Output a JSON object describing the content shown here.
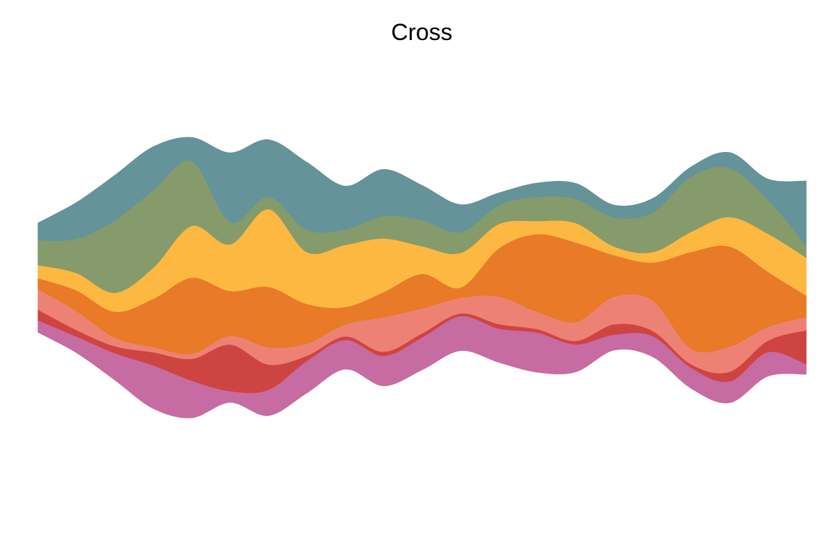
{
  "chart_data": {
    "type": "area",
    "layout": "streamgraph",
    "title": "Cross",
    "x": [
      0,
      1,
      2,
      3,
      4,
      5,
      6,
      7,
      8,
      9,
      10,
      11,
      12,
      13,
      14,
      15,
      16,
      17,
      18,
      19,
      20
    ],
    "axes_visible": false,
    "grid": false,
    "legend": "none",
    "layers_bottom_to_top": [
      {
        "color": "#C76BA3",
        "values": [
          0.35,
          0.47,
          0.78,
          1.25,
          1.08,
          0.33,
          0.75,
          0.93,
          0.85,
          0.87,
          0.94,
          1.0,
          0.98,
          1.15,
          0.8,
          0.45,
          0.6,
          0.6,
          0.62,
          0.7,
          0.3
        ]
      },
      {
        "color": "#CE4441",
        "values": [
          0.31,
          0.19,
          0.2,
          0.38,
          0.63,
          1.35,
          0.73,
          0.15,
          0.1,
          0.12,
          0.12,
          0.08,
          0.13,
          0.1,
          0.1,
          0.3,
          0.15,
          0.1,
          0.28,
          0.33,
          0.98
        ]
      },
      {
        "color": "#ED8274",
        "values": [
          0.6,
          0.55,
          0.25,
          0.15,
          0.15,
          0.25,
          0.5,
          0.35,
          0.35,
          1.0,
          0.72,
          0.45,
          0.8,
          0.5,
          0.55,
          0.8,
          0.88,
          0.45,
          0.73,
          0.4,
          0.38
        ]
      },
      {
        "color": "#E97A27",
        "values": [
          0.31,
          0.6,
          0.75,
          1.4,
          2.2,
          1.3,
          1.75,
          1.15,
          0.5,
          0.73,
          1.0,
          0.3,
          1.4,
          2.25,
          2.3,
          1.2,
          1.1,
          2.8,
          2.9,
          1.6,
          0.62
        ]
      },
      {
        "color": "#FDB841",
        "values": [
          0.38,
          0.5,
          0.55,
          0.9,
          1.5,
          1.35,
          2.25,
          1.5,
          1.8,
          1.55,
          0.8,
          1.0,
          0.7,
          0.38,
          0.56,
          0.25,
          0.3,
          0.58,
          0.85,
          1.1,
          1.1
        ]
      },
      {
        "color": "#859B6C",
        "values": [
          0.72,
          0.99,
          2.1,
          2.25,
          1.88,
          0.65,
          0.36,
          0.65,
          0.45,
          0.65,
          0.76,
          0.6,
          0.55,
          0.7,
          0.7,
          0.85,
          1.15,
          1.6,
          1.42,
          0.98,
          0.37
        ]
      },
      {
        "color": "#649399",
        "values": [
          0.5,
          1.05,
          1.3,
          1.25,
          0.68,
          2.0,
          1.65,
          1.95,
          1.25,
          1.35,
          1.0,
          0.8,
          0.35,
          0.4,
          0.45,
          0.35,
          0.4,
          0.28,
          0.45,
          0.6,
          1.85
        ]
      }
    ]
  }
}
